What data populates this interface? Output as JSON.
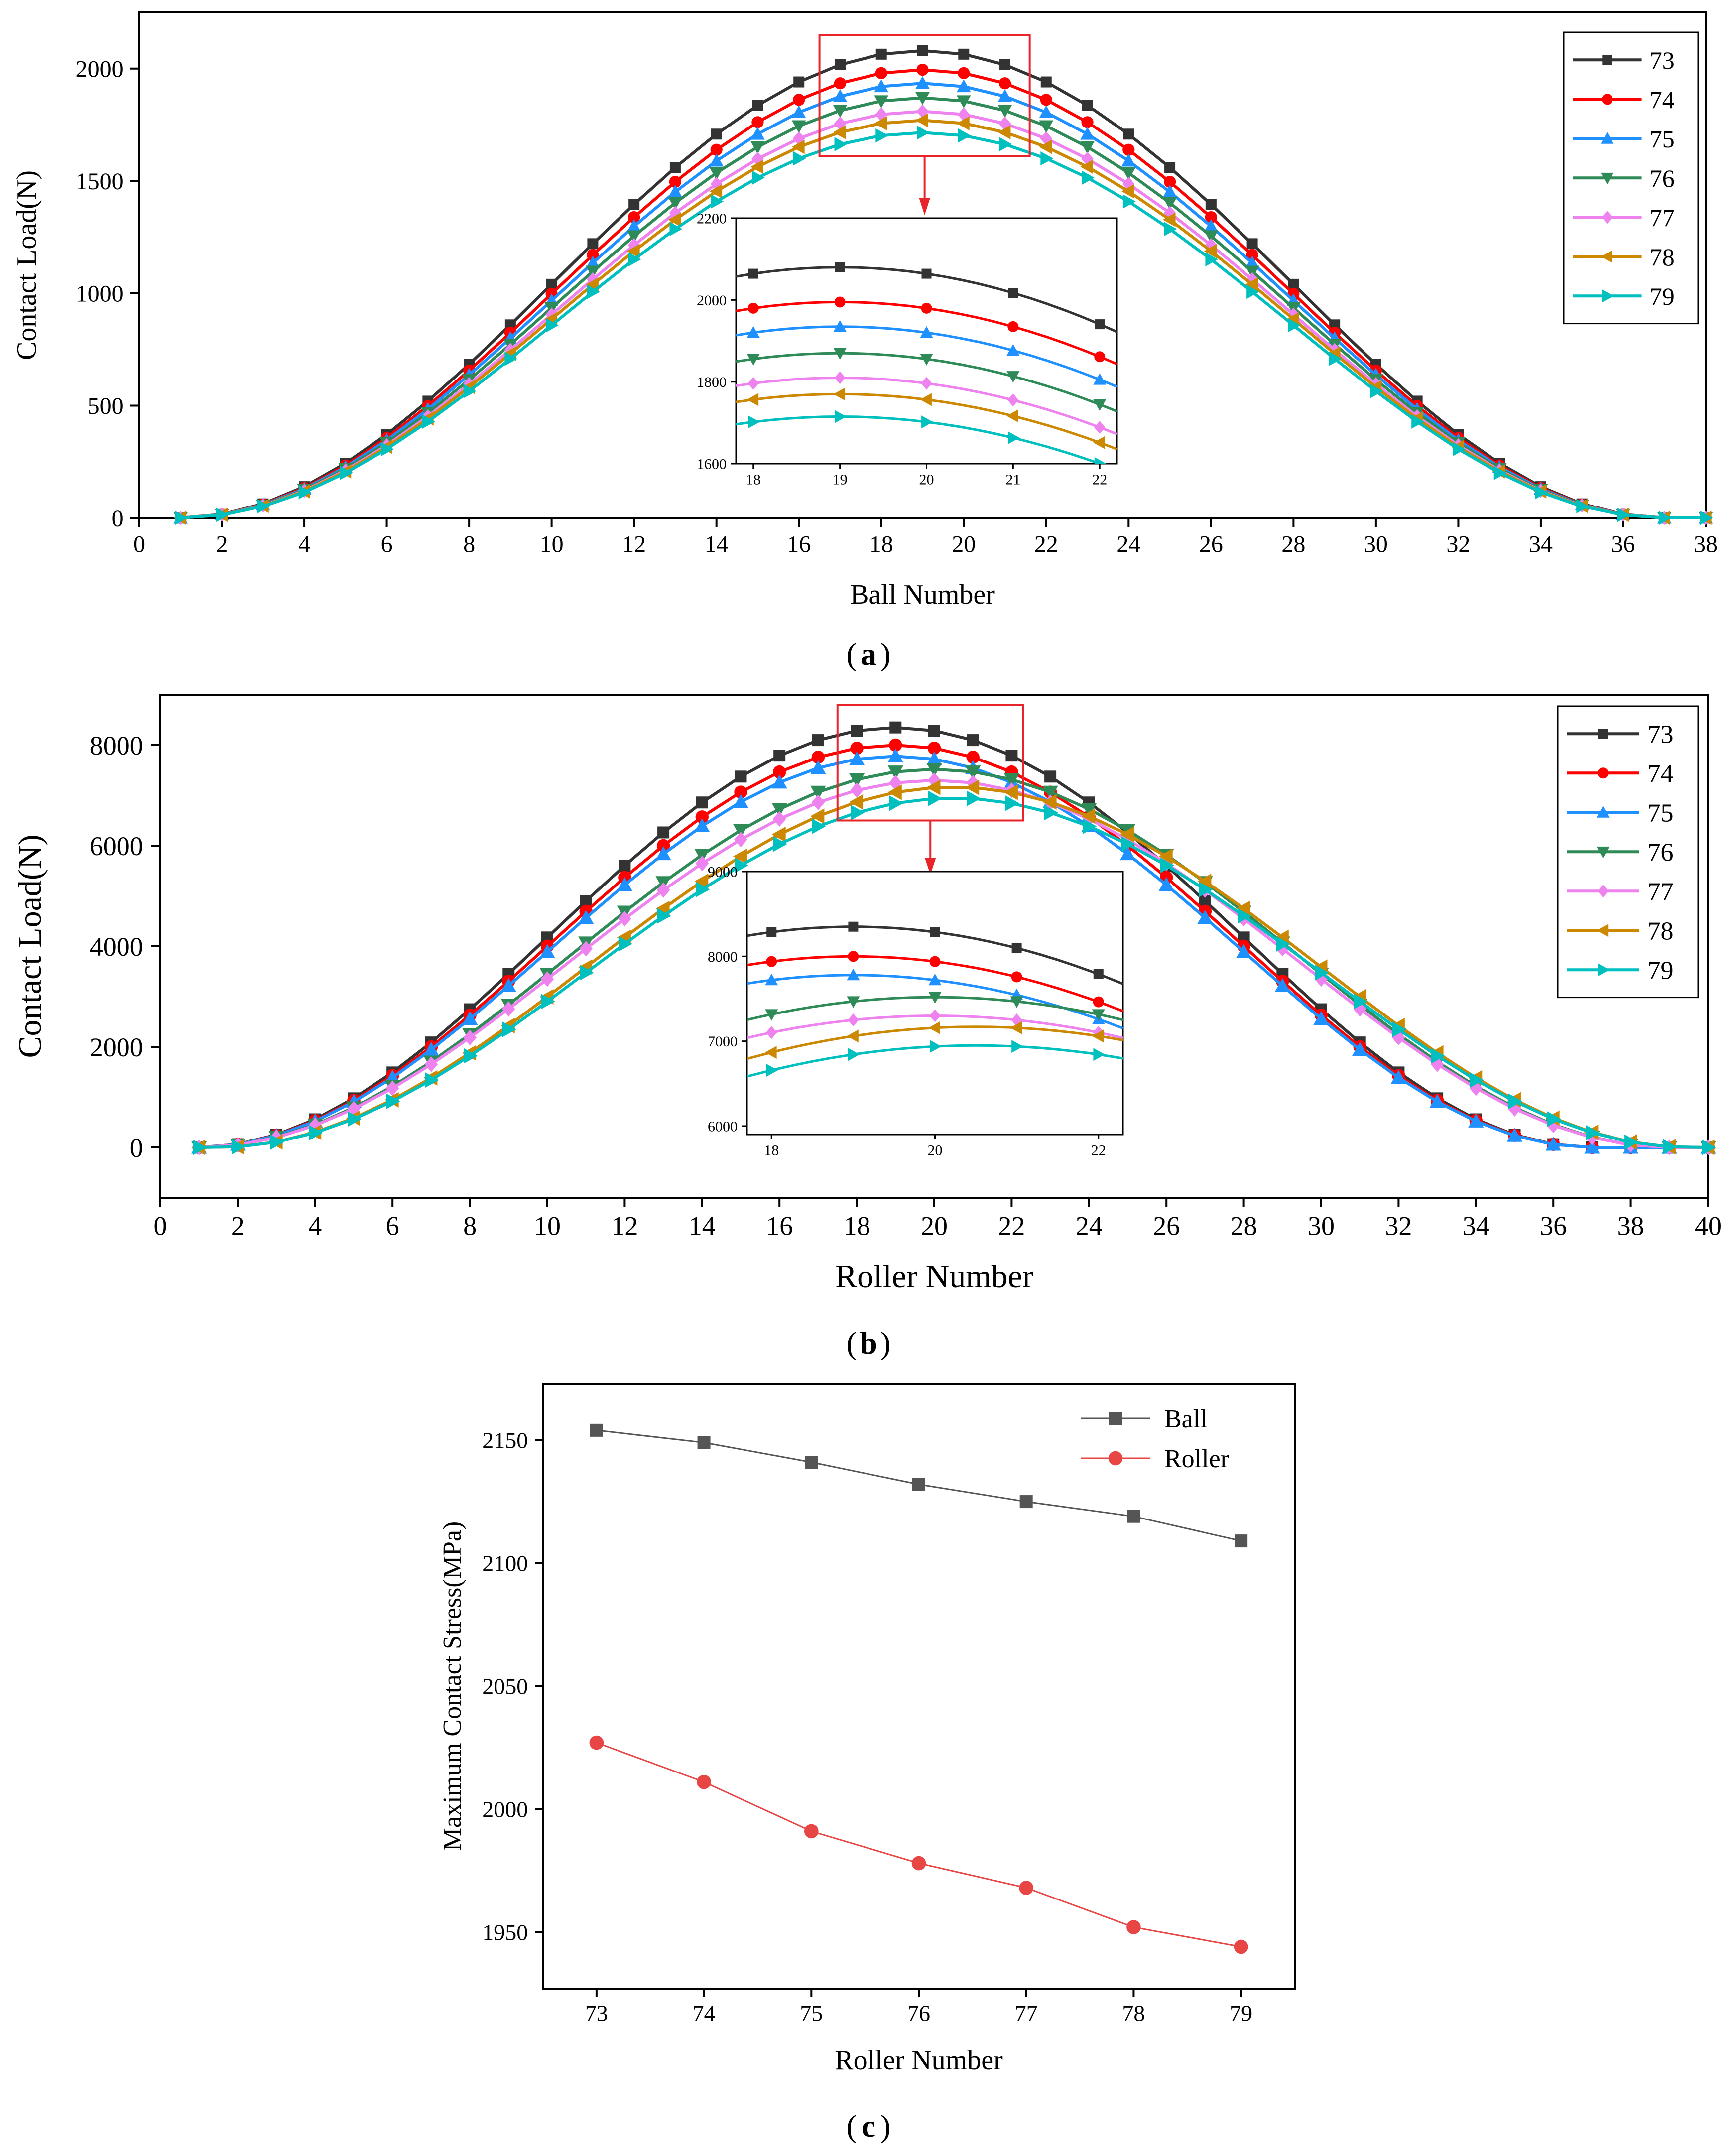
{
  "series_names": [
    "73",
    "74",
    "75",
    "76",
    "77",
    "78",
    "79"
  ],
  "series_colors": [
    "#333333",
    "#ff0000",
    "#1e90ff",
    "#2e8b57",
    "#ee82ee",
    "#cc8800",
    "#00bfbf"
  ],
  "series_markers": [
    "square",
    "circle",
    "triangle-up",
    "triangle-down",
    "diamond",
    "triangle-left",
    "triangle-right"
  ],
  "chart_data": [
    {
      "id": "a",
      "type": "line",
      "panel_label_open": "(",
      "panel_label_letter": "a",
      "panel_label_close": ")",
      "xlabel": "Ball Number",
      "ylabel": "Contact Load(N)",
      "xlim": [
        0,
        38
      ],
      "ylim": [
        0,
        2250
      ],
      "xticks": [
        0,
        2,
        4,
        6,
        8,
        10,
        12,
        14,
        16,
        18,
        20,
        22,
        24,
        26,
        28,
        30,
        32,
        34,
        36,
        38
      ],
      "yticks": [
        0,
        500,
        1000,
        1500,
        2000
      ],
      "x": [
        1,
        2,
        3,
        4,
        5,
        6,
        7,
        8,
        9,
        10,
        11,
        12,
        13,
        14,
        15,
        16,
        17,
        18,
        19,
        20,
        21,
        22,
        23,
        24,
        25,
        26,
        27,
        28,
        29,
        30,
        31,
        32,
        33,
        34,
        35,
        36,
        37,
        38
      ],
      "series_peaks": [
        2080,
        1995,
        1935,
        1870,
        1810,
        1770,
        1715
      ],
      "legend_position": "top-right",
      "inset": {
        "xlim": [
          17.8,
          22.2
        ],
        "ylim": [
          1600,
          2200
        ],
        "xticks": [
          18,
          19,
          20,
          21,
          22
        ],
        "yticks": [
          1600,
          1800,
          2000,
          2200
        ],
        "x": [
          18,
          19,
          20,
          21,
          22
        ]
      }
    },
    {
      "id": "b",
      "type": "line",
      "panel_label_open": "(",
      "panel_label_letter": "b",
      "panel_label_close": ")",
      "xlabel": "Roller Number",
      "ylabel": "Contact Load(N)",
      "xlim": [
        0,
        40
      ],
      "ylim": [
        -1000,
        9000
      ],
      "xticks": [
        0,
        2,
        4,
        6,
        8,
        10,
        12,
        14,
        16,
        18,
        20,
        22,
        24,
        26,
        28,
        30,
        32,
        34,
        36,
        38,
        40
      ],
      "yticks": [
        0,
        2000,
        4000,
        6000,
        8000
      ],
      "x": [
        1,
        2,
        3,
        4,
        5,
        6,
        7,
        8,
        9,
        10,
        11,
        12,
        13,
        14,
        15,
        16,
        17,
        18,
        19,
        20,
        21,
        22,
        23,
        24,
        25,
        26,
        27,
        28,
        29,
        30,
        31,
        32,
        33,
        34,
        35,
        36,
        37,
        38,
        39,
        40
      ],
      "series_peaks": [
        8350,
        8000,
        7780,
        7520,
        7300,
        7170,
        6950
      ],
      "series_centers": [
        19,
        19,
        19,
        20,
        20,
        20.5,
        20.5
      ],
      "series_halfwidths": [
        18,
        18,
        18,
        19,
        19,
        19,
        19
      ],
      "legend_position": "top-right",
      "inset": {
        "xlim": [
          17.7,
          22.3
        ],
        "ylim": [
          5900,
          9000
        ],
        "xticks": [
          18,
          20,
          22
        ],
        "yticks": [
          6000,
          7000,
          8000,
          9000
        ],
        "x": [
          18,
          19,
          20,
          21,
          22
        ]
      }
    },
    {
      "id": "c",
      "type": "line",
      "panel_label_open": "(",
      "panel_label_letter": "c",
      "panel_label_close": ")",
      "xlabel": "Roller Number",
      "ylabel": "Maximum Contact Stress(MPa)",
      "xlim": [
        72.5,
        79.5
      ],
      "ylim": [
        1927,
        2173
      ],
      "xticks": [
        73,
        74,
        75,
        76,
        77,
        78,
        79
      ],
      "yticks": [
        1950,
        2000,
        2050,
        2100,
        2150
      ],
      "categories": [
        73,
        74,
        75,
        76,
        77,
        78,
        79
      ],
      "legend_position": "top-right",
      "series": [
        {
          "name": "Ball",
          "color": "#555555",
          "marker": "square",
          "values": [
            2154,
            2149,
            2141,
            2132,
            2125,
            2119,
            2109
          ]
        },
        {
          "name": "Roller",
          "color": "#e84545",
          "marker": "circle",
          "values": [
            2027,
            2011,
            1991,
            1978,
            1968,
            1952,
            1944
          ]
        }
      ]
    }
  ]
}
